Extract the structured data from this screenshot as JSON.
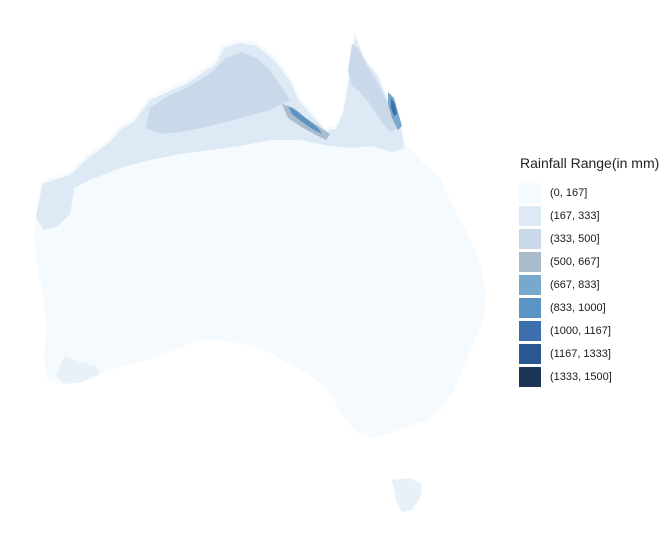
{
  "legend": {
    "title": "Rainfall Range(in mm)",
    "items": [
      {
        "label": "(0, 167]",
        "color": "#f5faff"
      },
      {
        "label": "(167, 333]",
        "color": "#dde9f4"
      },
      {
        "label": "(333, 500]",
        "color": "#c9d9ea"
      },
      {
        "label": "(500, 667]",
        "color": "#a9bccb"
      },
      {
        "label": "(667, 833]",
        "color": "#78a8cc"
      },
      {
        "label": "(833, 1000]",
        "color": "#5b93c4"
      },
      {
        "label": "(1000, 1167]",
        "color": "#3d6fae"
      },
      {
        "label": "(1167, 1333]",
        "color": "#2b5790"
      },
      {
        "label": "(1333, 1500]",
        "color": "#1d3557"
      }
    ]
  }
}
